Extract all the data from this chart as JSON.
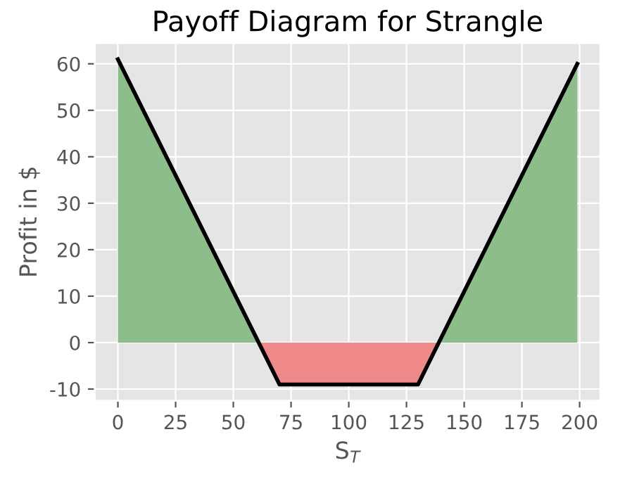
{
  "chart_data": {
    "type": "line",
    "title": "Payoff Diagram for Strangle",
    "xlabel": "S$_{T}$",
    "ylabel": "Profit in $",
    "series": [
      {
        "type": "area",
        "color": "#8cbd8a",
        "x": [
          0,
          61
        ],
        "values": [
          61,
          0
        ]
      },
      {
        "type": "area",
        "color": "#8cbd8a",
        "x": [
          139,
          199
        ],
        "values": [
          0,
          60
        ]
      },
      {
        "type": "area",
        "color": "#f08a8a",
        "x": [
          61,
          70,
          130,
          139
        ],
        "values": [
          0,
          -9,
          -9,
          0
        ]
      },
      {
        "color": "#000000",
        "x": [
          0,
          70,
          130,
          199
        ],
        "values": [
          61,
          -9,
          -9,
          60
        ]
      }
    ],
    "xlim": [
      -10,
      209
    ],
    "ylim": [
      -12.5,
      64.5
    ],
    "xticks": [
      0,
      25,
      50,
      75,
      100,
      125,
      150,
      175,
      200
    ],
    "yticks": [
      -10,
      0,
      10,
      20,
      30,
      40,
      50,
      60
    ],
    "grid": true,
    "line_style": "solid",
    "marker": "none"
  }
}
